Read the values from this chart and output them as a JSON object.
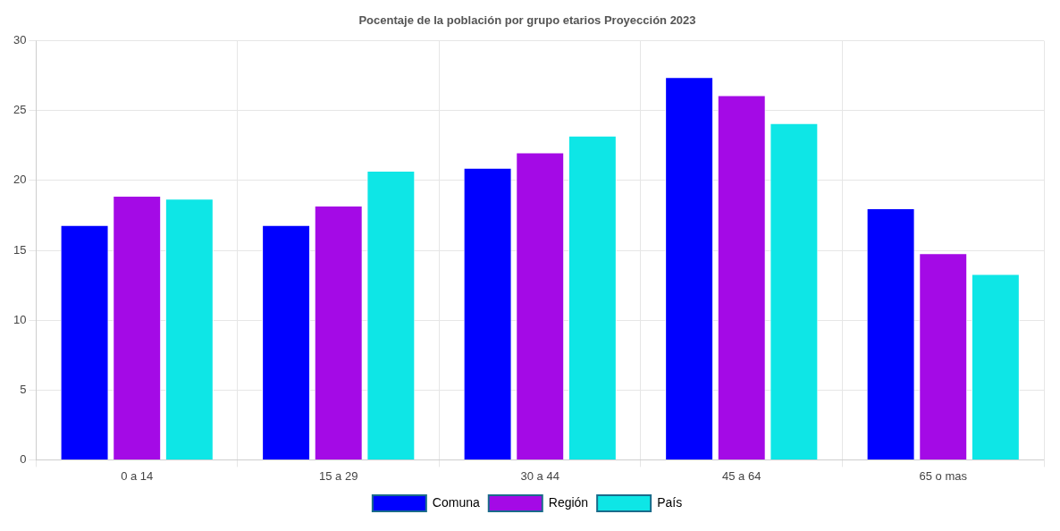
{
  "chart_data": {
    "type": "bar",
    "title": "Pocentaje de la población por grupo etarios Proyección 2023",
    "categories": [
      "0 a 14",
      "15 a 29",
      "30 a 44",
      "45 a 64",
      "65 o mas"
    ],
    "series": [
      {
        "name": "Comuna",
        "color": "#0000ff",
        "values": [
          16.8,
          16.8,
          20.9,
          27.4,
          18.0
        ]
      },
      {
        "name": "Región",
        "color": "#a40ae6",
        "values": [
          18.9,
          18.2,
          22.0,
          26.1,
          14.8
        ]
      },
      {
        "name": "País",
        "color": "#0ee6e6",
        "values": [
          18.7,
          20.7,
          23.2,
          24.1,
          13.3
        ]
      }
    ],
    "ylim": [
      0,
      30
    ],
    "yticks": [
      0,
      5,
      10,
      15,
      20,
      25,
      30
    ],
    "grid": true,
    "legend": "bottom"
  }
}
